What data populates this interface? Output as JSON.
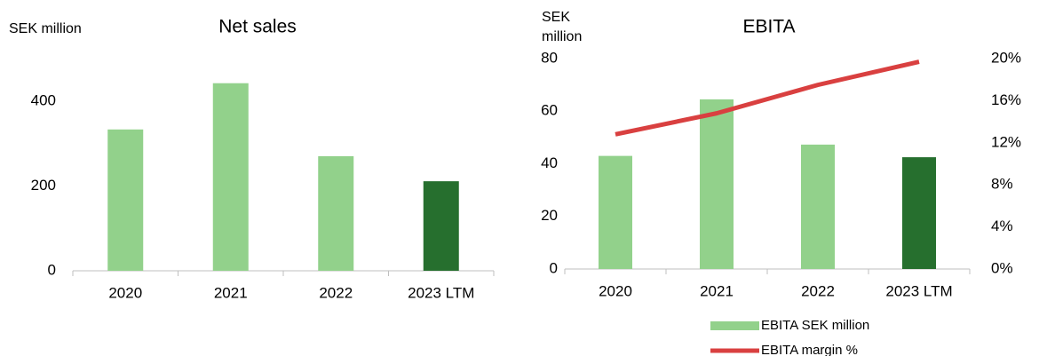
{
  "chart_data": [
    {
      "type": "bar",
      "title": "Net sales",
      "y_label": "SEK million",
      "categories": [
        "2020",
        "2021",
        "2022",
        "2023 LTM"
      ],
      "values": [
        333,
        442,
        270,
        211
      ],
      "colors": [
        "#92d18b",
        "#92d18b",
        "#92d18b",
        "#266f2e"
      ],
      "ylim": [
        0,
        500
      ],
      "yticks": [
        0,
        200,
        400
      ],
      "grid": false
    },
    {
      "type": "bar_line",
      "title": "EBITA",
      "y_label": "SEK million",
      "categories": [
        "2020",
        "2021",
        "2022",
        "2023 LTM"
      ],
      "series": [
        {
          "name": "EBITA SEK million",
          "type": "bar",
          "color": "#92d18b",
          "colors": [
            "#92d18b",
            "#92d18b",
            "#92d18b",
            "#266f2e"
          ],
          "values": [
            43,
            64.5,
            47.3,
            42.5
          ]
        },
        {
          "name": "EBITA margin %",
          "type": "line",
          "axis": "y2",
          "color": "#d94040",
          "values": [
            12.8,
            14.8,
            17.5,
            19.7
          ]
        }
      ],
      "ylim": [
        0,
        80
      ],
      "yticks": [
        0,
        20,
        40,
        60,
        80
      ],
      "y2lim": [
        0,
        20
      ],
      "y2ticks": [
        {
          "value": 0,
          "label": "0%"
        },
        {
          "value": 4,
          "label": "4%"
        },
        {
          "value": 8,
          "label": "8%"
        },
        {
          "value": 12,
          "label": "12%"
        },
        {
          "value": 16,
          "label": "16%"
        },
        {
          "value": 20,
          "label": "20%"
        }
      ],
      "grid": false,
      "legend": "bottom"
    }
  ]
}
